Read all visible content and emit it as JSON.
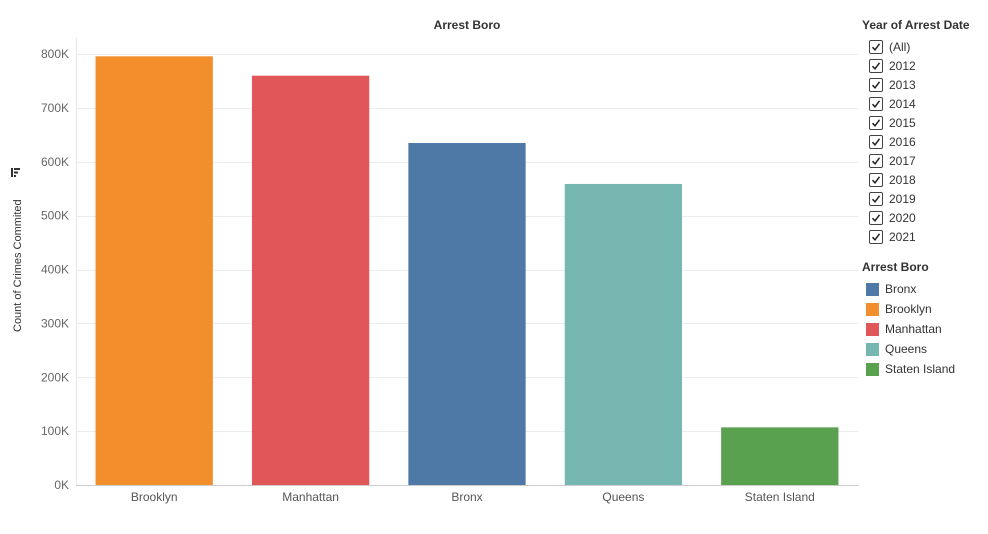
{
  "chart_data": {
    "type": "bar",
    "title": "Arrest Boro",
    "xlabel": "",
    "ylabel": "Count of Crimes Commited",
    "categories": [
      "Brooklyn",
      "Manhattan",
      "Bronx",
      "Queens",
      "Staten Island"
    ],
    "values": [
      796000,
      760000,
      635000,
      559000,
      107000
    ],
    "ylim": [
      0,
      830000
    ],
    "yticks": [
      0,
      100000,
      200000,
      300000,
      400000,
      500000,
      600000,
      700000,
      800000
    ],
    "ytick_labels": [
      "0K",
      "100K",
      "200K",
      "300K",
      "400K",
      "500K",
      "600K",
      "700K",
      "800K"
    ],
    "grid": true
  },
  "bar_colors": {
    "Brooklyn": "#F28E2B",
    "Manhattan": "#E15759",
    "Bronx": "#4E79A7",
    "Queens": "#76B7B2",
    "Staten Island": "#59A14F"
  },
  "axis_sort_icon": "sort-descending-icon",
  "filter": {
    "title": "Year of Arrest Date",
    "items": [
      "(All)",
      "2012",
      "2013",
      "2014",
      "2015",
      "2016",
      "2017",
      "2018",
      "2019",
      "2020",
      "2021"
    ],
    "checked": [
      true,
      true,
      true,
      true,
      true,
      true,
      true,
      true,
      true,
      true,
      true
    ]
  },
  "color_legend": {
    "title": "Arrest Boro",
    "items": [
      {
        "label": "Bronx",
        "color": "#4E79A7"
      },
      {
        "label": "Brooklyn",
        "color": "#F28E2B"
      },
      {
        "label": "Manhattan",
        "color": "#E15759"
      },
      {
        "label": "Queens",
        "color": "#76B7B2"
      },
      {
        "label": "Staten Island",
        "color": "#59A14F"
      }
    ]
  }
}
